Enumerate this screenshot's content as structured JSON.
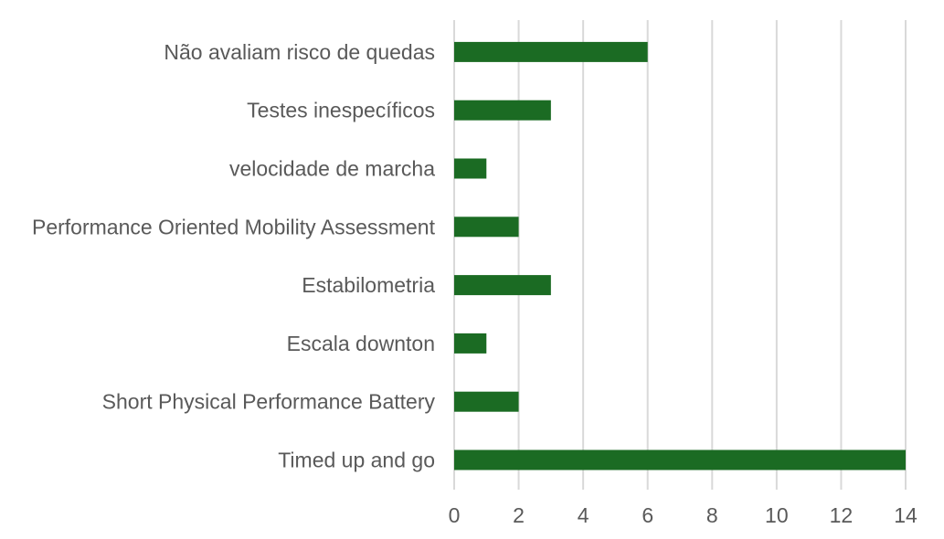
{
  "chart_data": {
    "type": "bar",
    "orientation": "horizontal",
    "title": "",
    "xlabel": "",
    "ylabel": "",
    "categories": [
      "Não avaliam risco de quedas",
      "Testes inespecíficos",
      "velocidade de marcha",
      "Performance Oriented Mobility Assessment",
      "Estabilometria",
      "Escala downton",
      "Short Physical Performance Battery",
      "Timed up and go"
    ],
    "values": [
      6,
      3,
      1,
      2,
      3,
      1,
      2,
      14
    ],
    "xlim": [
      0,
      14
    ],
    "xticks": [
      "0",
      "2",
      "4",
      "6",
      "8",
      "10",
      "12",
      "14"
    ],
    "grid": "vertical",
    "legend": "none",
    "colors": {
      "bar": "#1b6b23",
      "grid": "#d9d9d9",
      "text": "#595959"
    }
  }
}
